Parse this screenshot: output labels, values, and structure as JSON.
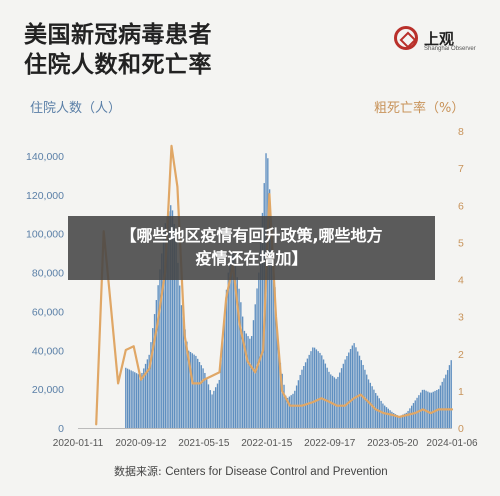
{
  "title_line1": "美国新冠病毒患者",
  "title_line2": "住院人数和死亡率",
  "logo": {
    "name": "上观",
    "sub": "Shanghai Observer"
  },
  "overlay_banner": {
    "line1": "【哪些地区疫情有回升政策,哪些地方",
    "line2": "疫情还在增加】"
  },
  "source_label": "数据来源:",
  "source_value": "Centers for Disease Control and Prevention",
  "colors": {
    "bars": "#5f8fc0",
    "line": "#e0a766",
    "left_axis_text": "#5a7fa7",
    "right_axis_text": "#c8935a"
  },
  "chart_data": {
    "type": "bar",
    "title": "美国新冠病毒患者住院人数和死亡率",
    "ylabel": "住院人数（人）",
    "y2label": "粗死亡率（%）",
    "ylim": [
      0,
      150000
    ],
    "y2lim": [
      0,
      8
    ],
    "yticks": [
      0,
      20000,
      40000,
      60000,
      80000,
      100000,
      120000,
      140000
    ],
    "ytick_labels": [
      "0",
      "20,000",
      "40,000",
      "60,000",
      "80,000",
      "100,000",
      "120,000",
      "140,000"
    ],
    "y2ticks": [
      0,
      1,
      2,
      3,
      4,
      5,
      6,
      7,
      8
    ],
    "xticks": [
      "2020-01-11",
      "2020-09-12",
      "2021-05-15",
      "2022-01-15",
      "2022-09-17",
      "2023-05-20",
      "2024-01-06"
    ],
    "hospitalizations_series": {
      "name": "住院人数",
      "points": [
        [
          "2020-07-15",
          31000
        ],
        [
          "2020-08-15",
          29000
        ],
        [
          "2020-09-12",
          27000
        ],
        [
          "2020-10-15",
          38000
        ],
        [
          "2020-11-15",
          70000
        ],
        [
          "2020-12-15",
          105000
        ],
        [
          "2021-01-09",
          116000
        ],
        [
          "2021-01-25",
          100000
        ],
        [
          "2021-02-15",
          65000
        ],
        [
          "2021-03-15",
          40000
        ],
        [
          "2021-04-15",
          37000
        ],
        [
          "2021-05-15",
          30000
        ],
        [
          "2021-06-15",
          17000
        ],
        [
          "2021-07-15",
          25000
        ],
        [
          "2021-08-15",
          78000
        ],
        [
          "2021-09-05",
          92000
        ],
        [
          "2021-10-01",
          70000
        ],
        [
          "2021-10-20",
          50000
        ],
        [
          "2021-11-15",
          45000
        ],
        [
          "2021-12-15",
          80000
        ],
        [
          "2022-01-15",
          148000
        ],
        [
          "2022-02-05",
          100000
        ],
        [
          "2022-03-01",
          40000
        ],
        [
          "2022-04-01",
          15000
        ],
        [
          "2022-05-01",
          18000
        ],
        [
          "2022-06-01",
          30000
        ],
        [
          "2022-07-15",
          42000
        ],
        [
          "2022-08-15",
          38000
        ],
        [
          "2022-09-17",
          28000
        ],
        [
          "2022-10-15",
          25000
        ],
        [
          "2022-11-15",
          35000
        ],
        [
          "2022-12-20",
          44000
        ],
        [
          "2023-01-15",
          36000
        ],
        [
          "2023-02-15",
          25000
        ],
        [
          "2023-03-15",
          18000
        ],
        [
          "2023-04-15",
          12000
        ],
        [
          "2023-05-20",
          8000
        ],
        [
          "2023-06-15",
          6000
        ],
        [
          "2023-07-15",
          8000
        ],
        [
          "2023-08-15",
          14000
        ],
        [
          "2023-09-15",
          20000
        ],
        [
          "2023-10-15",
          18000
        ],
        [
          "2023-11-15",
          20000
        ],
        [
          "2023-12-15",
          28000
        ],
        [
          "2024-01-06",
          36000
        ]
      ]
    },
    "mortality_series": {
      "name": "粗死亡率",
      "points": [
        [
          "2020-03-22",
          0.1
        ],
        [
          "2020-04-20",
          5.3
        ],
        [
          "2020-05-15",
          3.5
        ],
        [
          "2020-06-15",
          1.2
        ],
        [
          "2020-07-15",
          2.1
        ],
        [
          "2020-08-15",
          2.2
        ],
        [
          "2020-09-12",
          1.3
        ],
        [
          "2020-10-15",
          1.6
        ],
        [
          "2020-11-15",
          2.8
        ],
        [
          "2020-12-15",
          4.2
        ],
        [
          "2021-01-09",
          7.6
        ],
        [
          "2021-02-01",
          6.5
        ],
        [
          "2021-03-01",
          2.5
        ],
        [
          "2021-04-01",
          1.2
        ],
        [
          "2021-05-01",
          1.2
        ],
        [
          "2021-05-15",
          1.3
        ],
        [
          "2021-06-15",
          1.4
        ],
        [
          "2021-07-15",
          1.5
        ],
        [
          "2021-08-10",
          3.5
        ],
        [
          "2021-09-05",
          4.4
        ],
        [
          "2021-10-01",
          2.8
        ],
        [
          "2021-11-01",
          1.8
        ],
        [
          "2021-12-01",
          1.5
        ],
        [
          "2022-01-01",
          2.1
        ],
        [
          "2022-01-25",
          6.3
        ],
        [
          "2022-02-20",
          3.0
        ],
        [
          "2022-03-15",
          1.0
        ],
        [
          "2022-04-15",
          0.6
        ],
        [
          "2022-06-01",
          0.6
        ],
        [
          "2022-07-15",
          0.7
        ],
        [
          "2022-08-15",
          0.8
        ],
        [
          "2022-09-17",
          0.7
        ],
        [
          "2022-10-15",
          0.6
        ],
        [
          "2022-11-15",
          0.6
        ],
        [
          "2022-12-20",
          0.8
        ],
        [
          "2023-01-15",
          0.9
        ],
        [
          "2023-02-15",
          0.7
        ],
        [
          "2023-03-15",
          0.5
        ],
        [
          "2023-04-15",
          0.4
        ],
        [
          "2023-05-20",
          0.35
        ],
        [
          "2023-06-15",
          0.3
        ],
        [
          "2023-07-15",
          0.35
        ],
        [
          "2023-08-15",
          0.4
        ],
        [
          "2023-09-15",
          0.5
        ],
        [
          "2023-10-15",
          0.4
        ],
        [
          "2023-11-15",
          0.5
        ],
        [
          "2023-12-15",
          0.5
        ],
        [
          "2024-01-06",
          0.5
        ]
      ]
    }
  }
}
